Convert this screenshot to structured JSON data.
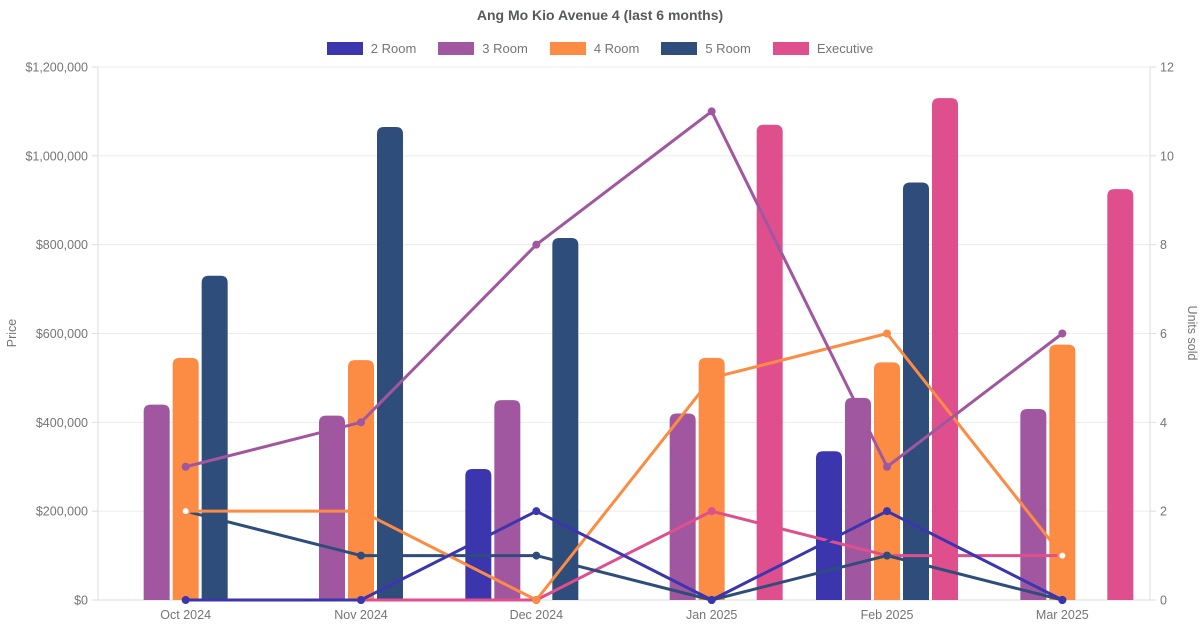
{
  "title": "Ang Mo Kio Avenue 4 (last 6 months)",
  "chart_data": {
    "type": "combo bar+line, dual axis (bars = Price on left axis, lines = Units sold on right axis)",
    "categories": [
      "Oct 2024",
      "Nov 2024",
      "Dec 2024",
      "Jan 2025",
      "Feb 2025",
      "Mar 2025"
    ],
    "left_axis": {
      "title": "Price",
      "min": 0,
      "max": 1200000,
      "tick_step": 200000,
      "tick_labels": [
        "$0",
        "$200,000",
        "$400,000",
        "$600,000",
        "$800,000",
        "$1,000,000",
        "$1,200,000"
      ]
    },
    "right_axis": {
      "title": "Units sold",
      "min": 0,
      "max": 12,
      "tick_step": 2,
      "tick_labels": [
        "0",
        "2",
        "4",
        "6",
        "8",
        "10",
        "12"
      ]
    },
    "legend_position": "top",
    "grid": true,
    "series": [
      {
        "name": "2 Room",
        "color": "#3b35ae",
        "bar_values_price": [
          null,
          null,
          295000,
          null,
          335000,
          null
        ],
        "line_values_units": [
          0,
          0,
          2,
          0,
          2,
          0
        ],
        "white_filled_points": []
      },
      {
        "name": "3 Room",
        "color": "#a1579f",
        "bar_values_price": [
          440000,
          415000,
          450000,
          420000,
          455000,
          430000
        ],
        "line_values_units": [
          3,
          4,
          8,
          11,
          3,
          6
        ],
        "white_filled_points": []
      },
      {
        "name": "4 Room",
        "color": "#fc8b43",
        "bar_values_price": [
          545000,
          540000,
          null,
          545000,
          535000,
          575000
        ],
        "line_values_units": [
          2,
          2,
          0,
          5,
          6,
          1
        ],
        "white_filled_points": [
          0,
          5
        ]
      },
      {
        "name": "5 Room",
        "color": "#2e4d7a",
        "bar_values_price": [
          730000,
          1065000,
          815000,
          null,
          940000,
          null
        ],
        "line_values_units": [
          2,
          1,
          1,
          0,
          1,
          0
        ],
        "white_filled_points": []
      },
      {
        "name": "Executive",
        "color": "#df4f8d",
        "bar_values_price": [
          null,
          null,
          null,
          1070000,
          1130000,
          925000
        ],
        "line_values_units": [
          null,
          0,
          0,
          2,
          1,
          1
        ],
        "white_filled_points": [
          5
        ]
      }
    ]
  },
  "style_colors": {
    "grid": "#ececec",
    "axis_line": "#dedede",
    "tick_text": "#757575",
    "title_text": "#58595b"
  }
}
